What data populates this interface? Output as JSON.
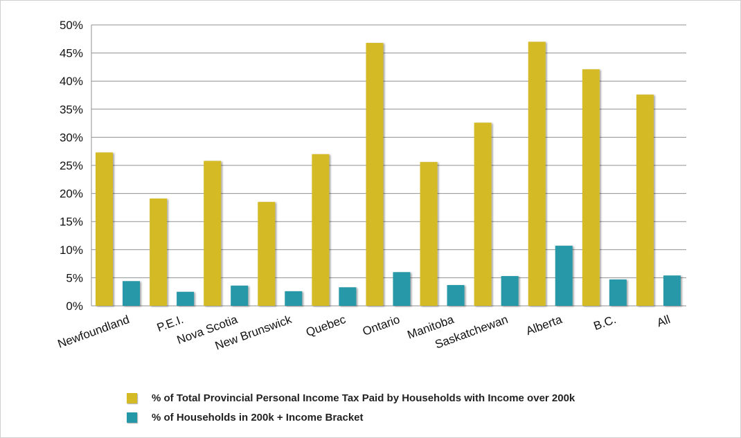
{
  "colors": {
    "series1": "#d4bb25",
    "series2": "#2598a8",
    "grid": "#8f8f8f"
  },
  "chart_data": {
    "type": "bar",
    "title": "",
    "xlabel": "",
    "ylabel": "",
    "ylim": [
      0,
      50
    ],
    "y_ticks": [
      "0%",
      "5%",
      "10%",
      "15%",
      "20%",
      "25%",
      "30%",
      "35%",
      "40%",
      "45%",
      "50%"
    ],
    "grid": true,
    "legend_position": "bottom",
    "categories": [
      "Newfoundland",
      "P.E.I.",
      "Nova Scotia",
      "New Brunswick",
      "Quebec",
      "Ontario",
      "Manitoba",
      "Saskatchewan",
      "Alberta",
      "B.C.",
      "All"
    ],
    "series": [
      {
        "name": "% of Total Provincial Personal Income Tax Paid by Households with Income over 200k",
        "values": [
          27.3,
          19.1,
          25.8,
          18.5,
          27.0,
          46.8,
          25.6,
          32.6,
          47.0,
          42.1,
          37.6
        ]
      },
      {
        "name": "% of Households in 200k + Income Bracket",
        "values": [
          4.4,
          2.5,
          3.6,
          2.6,
          3.3,
          6.0,
          3.7,
          5.3,
          10.7,
          4.7,
          5.4
        ]
      }
    ]
  }
}
